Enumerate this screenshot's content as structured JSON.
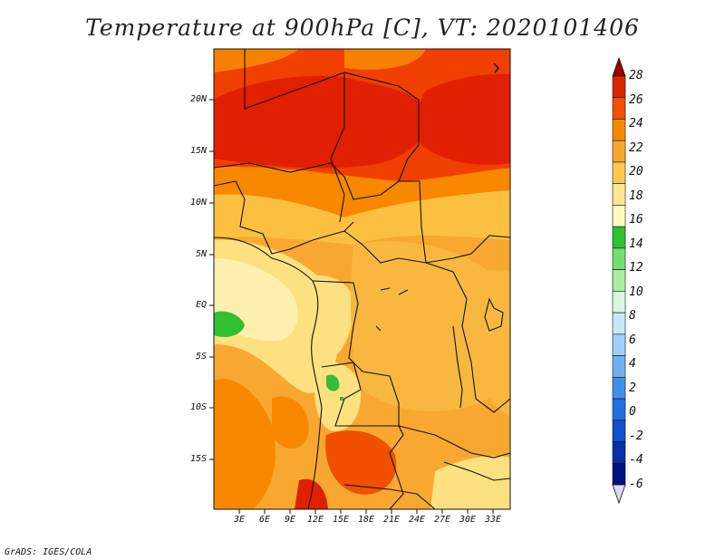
{
  "title": "Temperature at 900hPa [C], VT: 2020101406",
  "credit": "GrADS: IGES/COLA",
  "lat_labels": [
    "20N",
    "15N",
    "10N",
    "5N",
    "EQ",
    "5S",
    "10S",
    "15S"
  ],
  "lon_labels": [
    "3E",
    "6E",
    "9E",
    "12E",
    "15E",
    "18E",
    "21E",
    "24E",
    "27E",
    "30E",
    "33E"
  ],
  "colorbar": {
    "labels": [
      "28",
      "26",
      "24",
      "22",
      "20",
      "18",
      "16",
      "14",
      "12",
      "10",
      "8",
      "6",
      "4",
      "2",
      "0",
      "-2",
      "-4",
      "-6"
    ],
    "colors": [
      "#a00000",
      "#d82800",
      "#f05000",
      "#f88800",
      "#f8a830",
      "#fcc850",
      "#fde890",
      "#fff8c0",
      "#30c030",
      "#70e070",
      "#a8f0a0",
      "#d8f8e0",
      "#c8e8f8",
      "#a0d0f8",
      "#70b0f0",
      "#4090e8",
      "#2070e0",
      "#1050c8",
      "#0830a8",
      "#001080",
      "#d8d8f8"
    ]
  },
  "map_colors": {
    "hot28": "#e02000",
    "hot26": "#f04000",
    "t24": "#f88000",
    "t22": "#f8a830",
    "t20": "#fcc040",
    "t18": "#fde080",
    "t16": "#fff0b0",
    "green": "#30c030"
  }
}
